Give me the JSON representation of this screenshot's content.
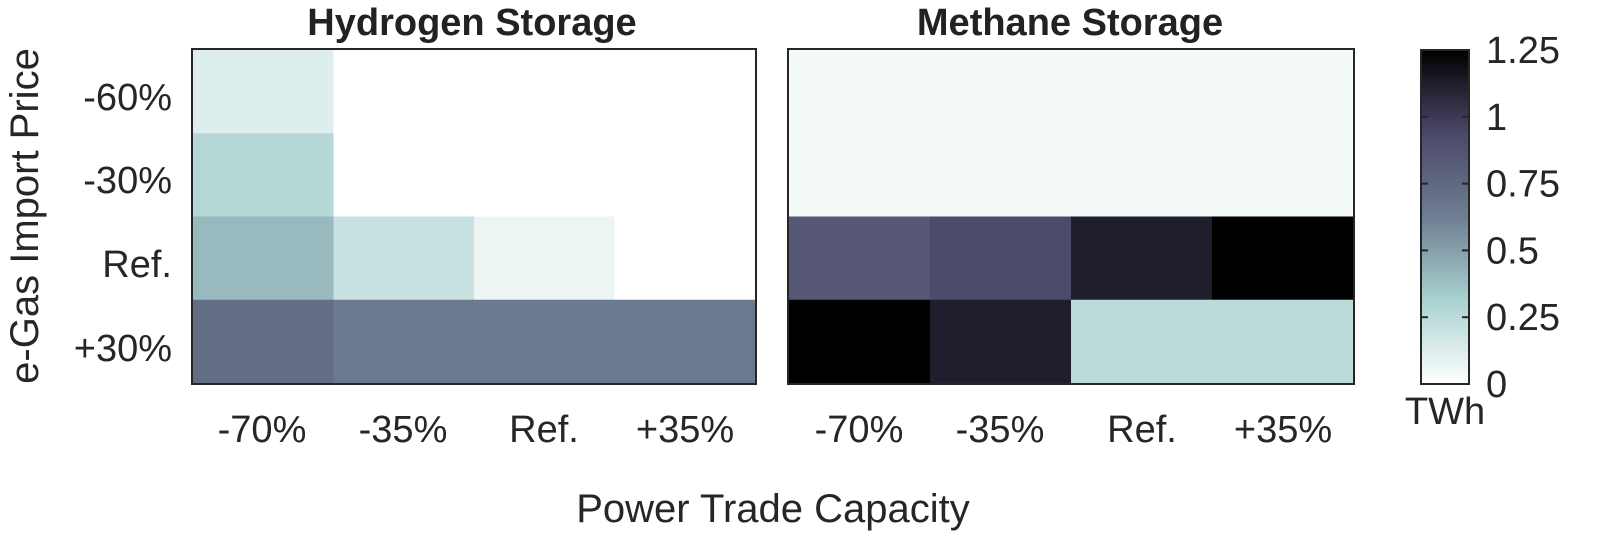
{
  "chart_data": {
    "type": "heatmap",
    "xlabel": "Power Trade Capacity",
    "ylabel": "e-Gas Import Price",
    "x_categories": [
      "-70%",
      "-35%",
      "Ref.",
      "+35%"
    ],
    "y_categories": [
      "-60%",
      "-30%",
      "Ref.",
      "+30%"
    ],
    "panels": [
      {
        "title": "Hydrogen Storage",
        "values": [
          [
            0.12,
            0,
            0,
            0
          ],
          [
            0.27,
            0,
            0,
            0
          ],
          [
            0.4,
            0.2,
            0.07,
            0
          ],
          [
            0.72,
            0.65,
            0.65,
            0.65
          ]
        ]
      },
      {
        "title": "Methane Storage",
        "values": [
          [
            0.04,
            0.04,
            0.04,
            0.04
          ],
          [
            0.04,
            0.04,
            0.04,
            0.04
          ],
          [
            0.85,
            0.92,
            1.12,
            1.25
          ],
          [
            1.25,
            1.12,
            0.25,
            0.25
          ]
        ]
      }
    ],
    "colorbar": {
      "range": [
        0,
        1.25
      ],
      "ticks": [
        "0",
        "0.25",
        "0.5",
        "0.75",
        "1",
        "1.25"
      ],
      "tick_values": [
        0,
        0.25,
        0.5,
        0.75,
        1,
        1.25
      ],
      "unit": "TWh",
      "colors": {
        "stops": [
          0,
          0.25,
          0.5,
          0.75,
          1
        ],
        "hex": [
          "#ffffff",
          "#a9d2d0",
          "#6e7e92",
          "#4b4869",
          "#000000"
        ]
      }
    },
    "grid": false,
    "legend": "colorbar-right"
  }
}
